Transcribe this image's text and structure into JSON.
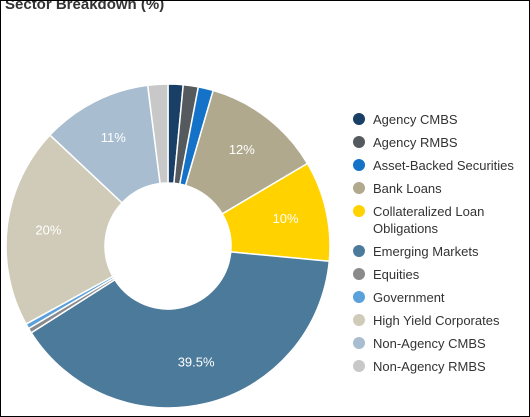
{
  "chart_data": {
    "type": "donut",
    "title": "Sector Breakdown (%)",
    "categories": [
      "Agency CMBS",
      "Agency RMBS",
      "Asset-Backed Securities",
      "Bank Loans",
      "Collateralized Loan Obligations",
      "Emerging Markets",
      "Equities",
      "Government",
      "High Yield Corporates",
      "Non-Agency CMBS",
      "Non-Agency RMBS"
    ],
    "values": [
      1.5,
      1.5,
      1.5,
      12,
      10,
      39.5,
      0.5,
      0.5,
      20,
      11,
      2
    ],
    "value_labels": [
      null,
      null,
      null,
      "12%",
      "10%",
      "39.5%",
      null,
      null,
      "20%",
      "11%",
      null
    ],
    "colors": [
      "#1a3f66",
      "#555a5e",
      "#1473c8",
      "#b0a98e",
      "#ffd200",
      "#4c7a9b",
      "#8a8a8a",
      "#5aa0db",
      "#d0cbb8",
      "#a8bdd0",
      "#c8c8c8"
    ]
  }
}
